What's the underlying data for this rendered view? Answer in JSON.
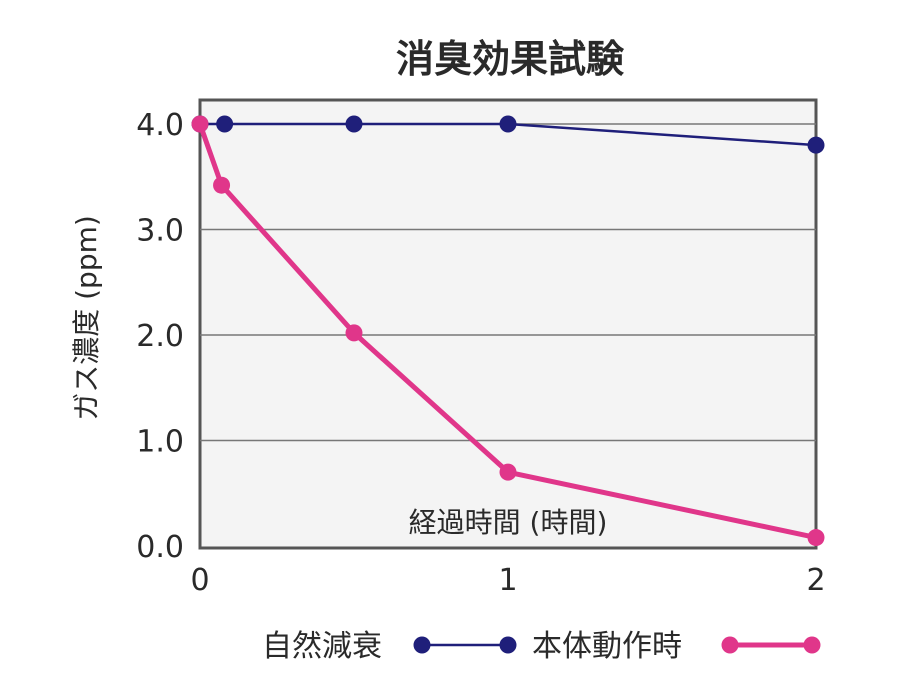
{
  "chart_data": {
    "type": "line",
    "title": "消臭効果試験",
    "xlabel": "経過時間 (時間)",
    "ylabel": "ガス濃度 (ppm)",
    "xlim": [
      0,
      2
    ],
    "ylim": [
      0,
      4.0
    ],
    "x_ticks": [
      "0",
      "1",
      "2"
    ],
    "y_ticks": [
      "0.0",
      "1.0",
      "2.0",
      "3.0",
      "4.0"
    ],
    "grid": true,
    "legend_position": "bottom",
    "series": [
      {
        "name": "自然減衰",
        "color": "#1f1f7a",
        "points": [
          {
            "x": 0,
            "y": 4.0
          },
          {
            "x": 0.08,
            "y": 4.0
          },
          {
            "x": 0.5,
            "y": 4.0
          },
          {
            "x": 1,
            "y": 4.0
          },
          {
            "x": 2,
            "y": 3.8
          }
        ]
      },
      {
        "name": "本体動作時",
        "color": "#e0368a",
        "points": [
          {
            "x": 0,
            "y": 4.0
          },
          {
            "x": 0.07,
            "y": 3.42
          },
          {
            "x": 0.5,
            "y": 2.02
          },
          {
            "x": 1,
            "y": 0.7
          },
          {
            "x": 2,
            "y": 0.08
          }
        ]
      }
    ]
  }
}
